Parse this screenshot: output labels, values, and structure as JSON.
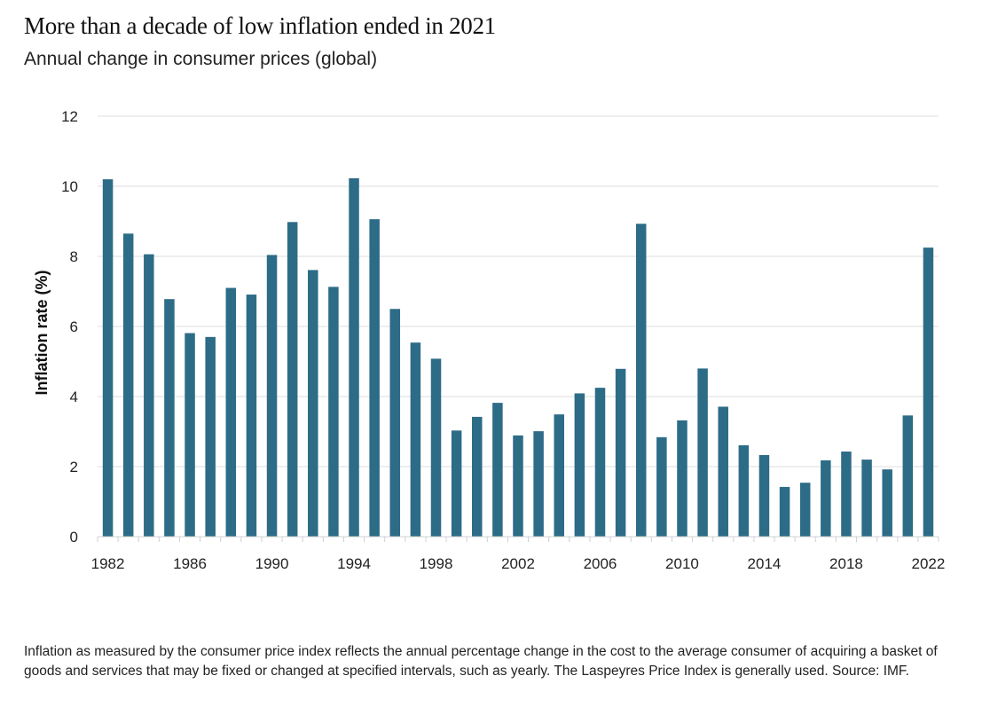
{
  "title": "More than a decade of low inflation ended in 2021",
  "subtitle": "Annual change in consumer prices (global)",
  "footnote": "Inflation as measured by the consumer price index reflects the annual percentage change in the cost to the average consumer of acquiring a basket of goods and services that may be fixed or changed at specified intervals, such as yearly. The Laspeyres Price Index is generally used. Source: IMF.",
  "colors": {
    "bar": "#2d6c87",
    "grid": "#e3e3e3",
    "axis": "#d0d0d0"
  },
  "chart_data": {
    "type": "bar",
    "title": "More than a decade of low inflation ended in 2021",
    "subtitle": "Annual change in consumer prices (global)",
    "xlabel": "",
    "ylabel": "Inflation rate (%)",
    "ylim": [
      0,
      12
    ],
    "yticks": [
      0,
      2,
      4,
      6,
      8,
      10,
      12
    ],
    "xtick_labels": [
      "1982",
      "1986",
      "1990",
      "1994",
      "1998",
      "2002",
      "2006",
      "2010",
      "2014",
      "2018",
      "2022"
    ],
    "grid": true,
    "legend": "none",
    "categories": [
      "1982",
      "1983",
      "1984",
      "1985",
      "1986",
      "1987",
      "1988",
      "1989",
      "1990",
      "1991",
      "1992",
      "1993",
      "1994",
      "1995",
      "1996",
      "1997",
      "1998",
      "1999",
      "2000",
      "2001",
      "2002",
      "2003",
      "2004",
      "2005",
      "2006",
      "2007",
      "2008",
      "2009",
      "2010",
      "2011",
      "2012",
      "2013",
      "2014",
      "2015",
      "2016",
      "2017",
      "2018",
      "2019",
      "2020",
      "2021",
      "2022"
    ],
    "values": [
      10.2,
      8.65,
      8.06,
      6.78,
      5.81,
      5.7,
      7.1,
      6.91,
      8.04,
      8.98,
      7.61,
      7.13,
      10.23,
      9.06,
      6.5,
      5.54,
      5.08,
      3.03,
      3.42,
      3.82,
      2.89,
      3.01,
      3.49,
      4.09,
      4.25,
      4.79,
      8.93,
      2.84,
      3.32,
      4.8,
      3.71,
      2.61,
      2.33,
      1.42,
      1.54,
      2.18,
      2.43,
      2.2,
      1.92,
      3.46,
      8.25
    ]
  }
}
